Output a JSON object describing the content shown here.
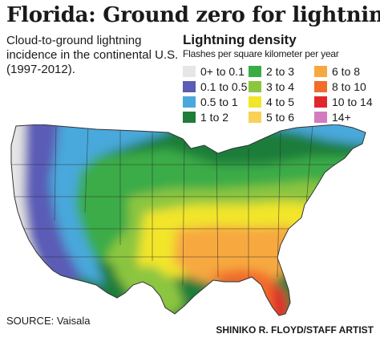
{
  "title": "Florida: Ground zero for lightning",
  "subtitle": "Cloud-to-ground lightning incidence in the continental U.S. (1997-2012).",
  "legend": {
    "title": "Lightning density",
    "subtitle": "Flashes per square kilometer per year",
    "items": [
      {
        "label": "0+ to 0.1",
        "color": "#e6e6e6"
      },
      {
        "label": "0.1 to 0.5",
        "color": "#5a5cb6"
      },
      {
        "label": "0.5 to 1",
        "color": "#4aa8dc"
      },
      {
        "label": "1 to 2",
        "color": "#1f7d3a"
      },
      {
        "label": "2 to 3",
        "color": "#3aac46"
      },
      {
        "label": "3 to 4",
        "color": "#8cc63f"
      },
      {
        "label": "4 to 5",
        "color": "#f2e52a"
      },
      {
        "label": "5 to 6",
        "color": "#f9d155"
      },
      {
        "label": "6 to 8",
        "color": "#f7a941"
      },
      {
        "label": "8 to 10",
        "color": "#f26c2c"
      },
      {
        "label": "10 to 14",
        "color": "#e0262b"
      },
      {
        "label": "14+",
        "color": "#d27bbf"
      }
    ]
  },
  "source": "SOURCE: Vaisala",
  "credit": "SHINIKO R. FLOYD/STAFF ARTIST"
}
